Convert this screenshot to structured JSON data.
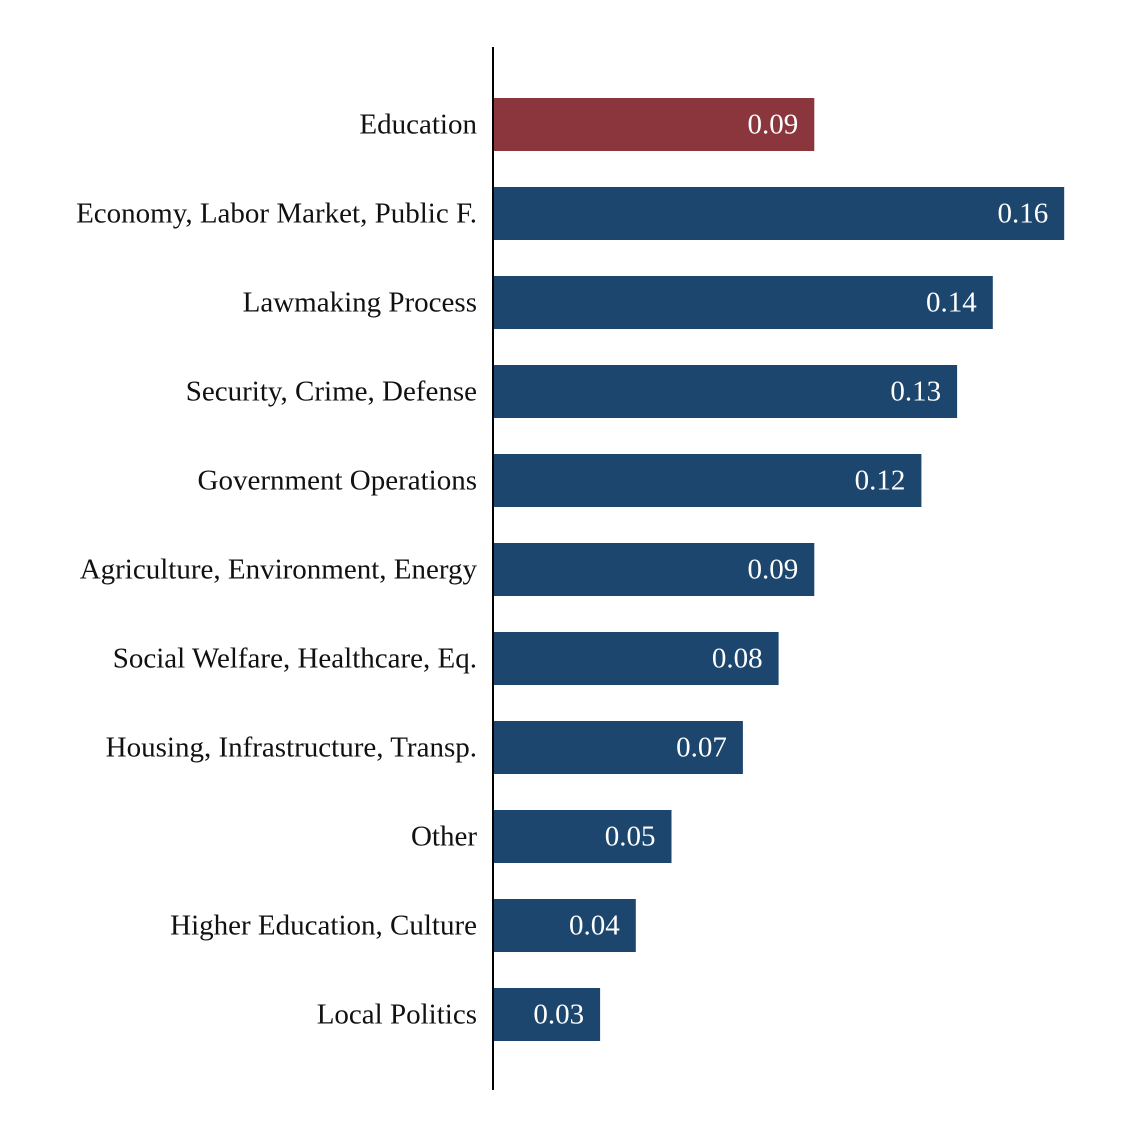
{
  "chart_data": {
    "type": "bar",
    "orientation": "horizontal",
    "title": "",
    "xlabel": "",
    "ylabel": "",
    "categories": [
      "Education",
      "Economy, Labor Market, Public F.",
      "Lawmaking Process",
      "Security, Crime, Defense",
      "Government Operations",
      "Agriculture, Environment, Energy",
      "Social Welfare, Healthcare, Eq.",
      "Housing, Infrastructure, Transp.",
      "Other",
      "Higher Education, Culture",
      "Local Politics"
    ],
    "values": [
      0.09,
      0.16,
      0.14,
      0.13,
      0.12,
      0.09,
      0.08,
      0.07,
      0.05,
      0.04,
      0.03
    ],
    "value_labels": [
      "0.09",
      "0.16",
      "0.14",
      "0.13",
      "0.12",
      "0.09",
      "0.08",
      "0.07",
      "0.05",
      "0.04",
      "0.03"
    ],
    "highlighted_category": "Education",
    "colors": {
      "highlight": "#8b353d",
      "default": "#1c466d",
      "axis": "#000000"
    },
    "xlim": [
      0,
      0.177
    ],
    "grid": false,
    "legend": "none"
  }
}
